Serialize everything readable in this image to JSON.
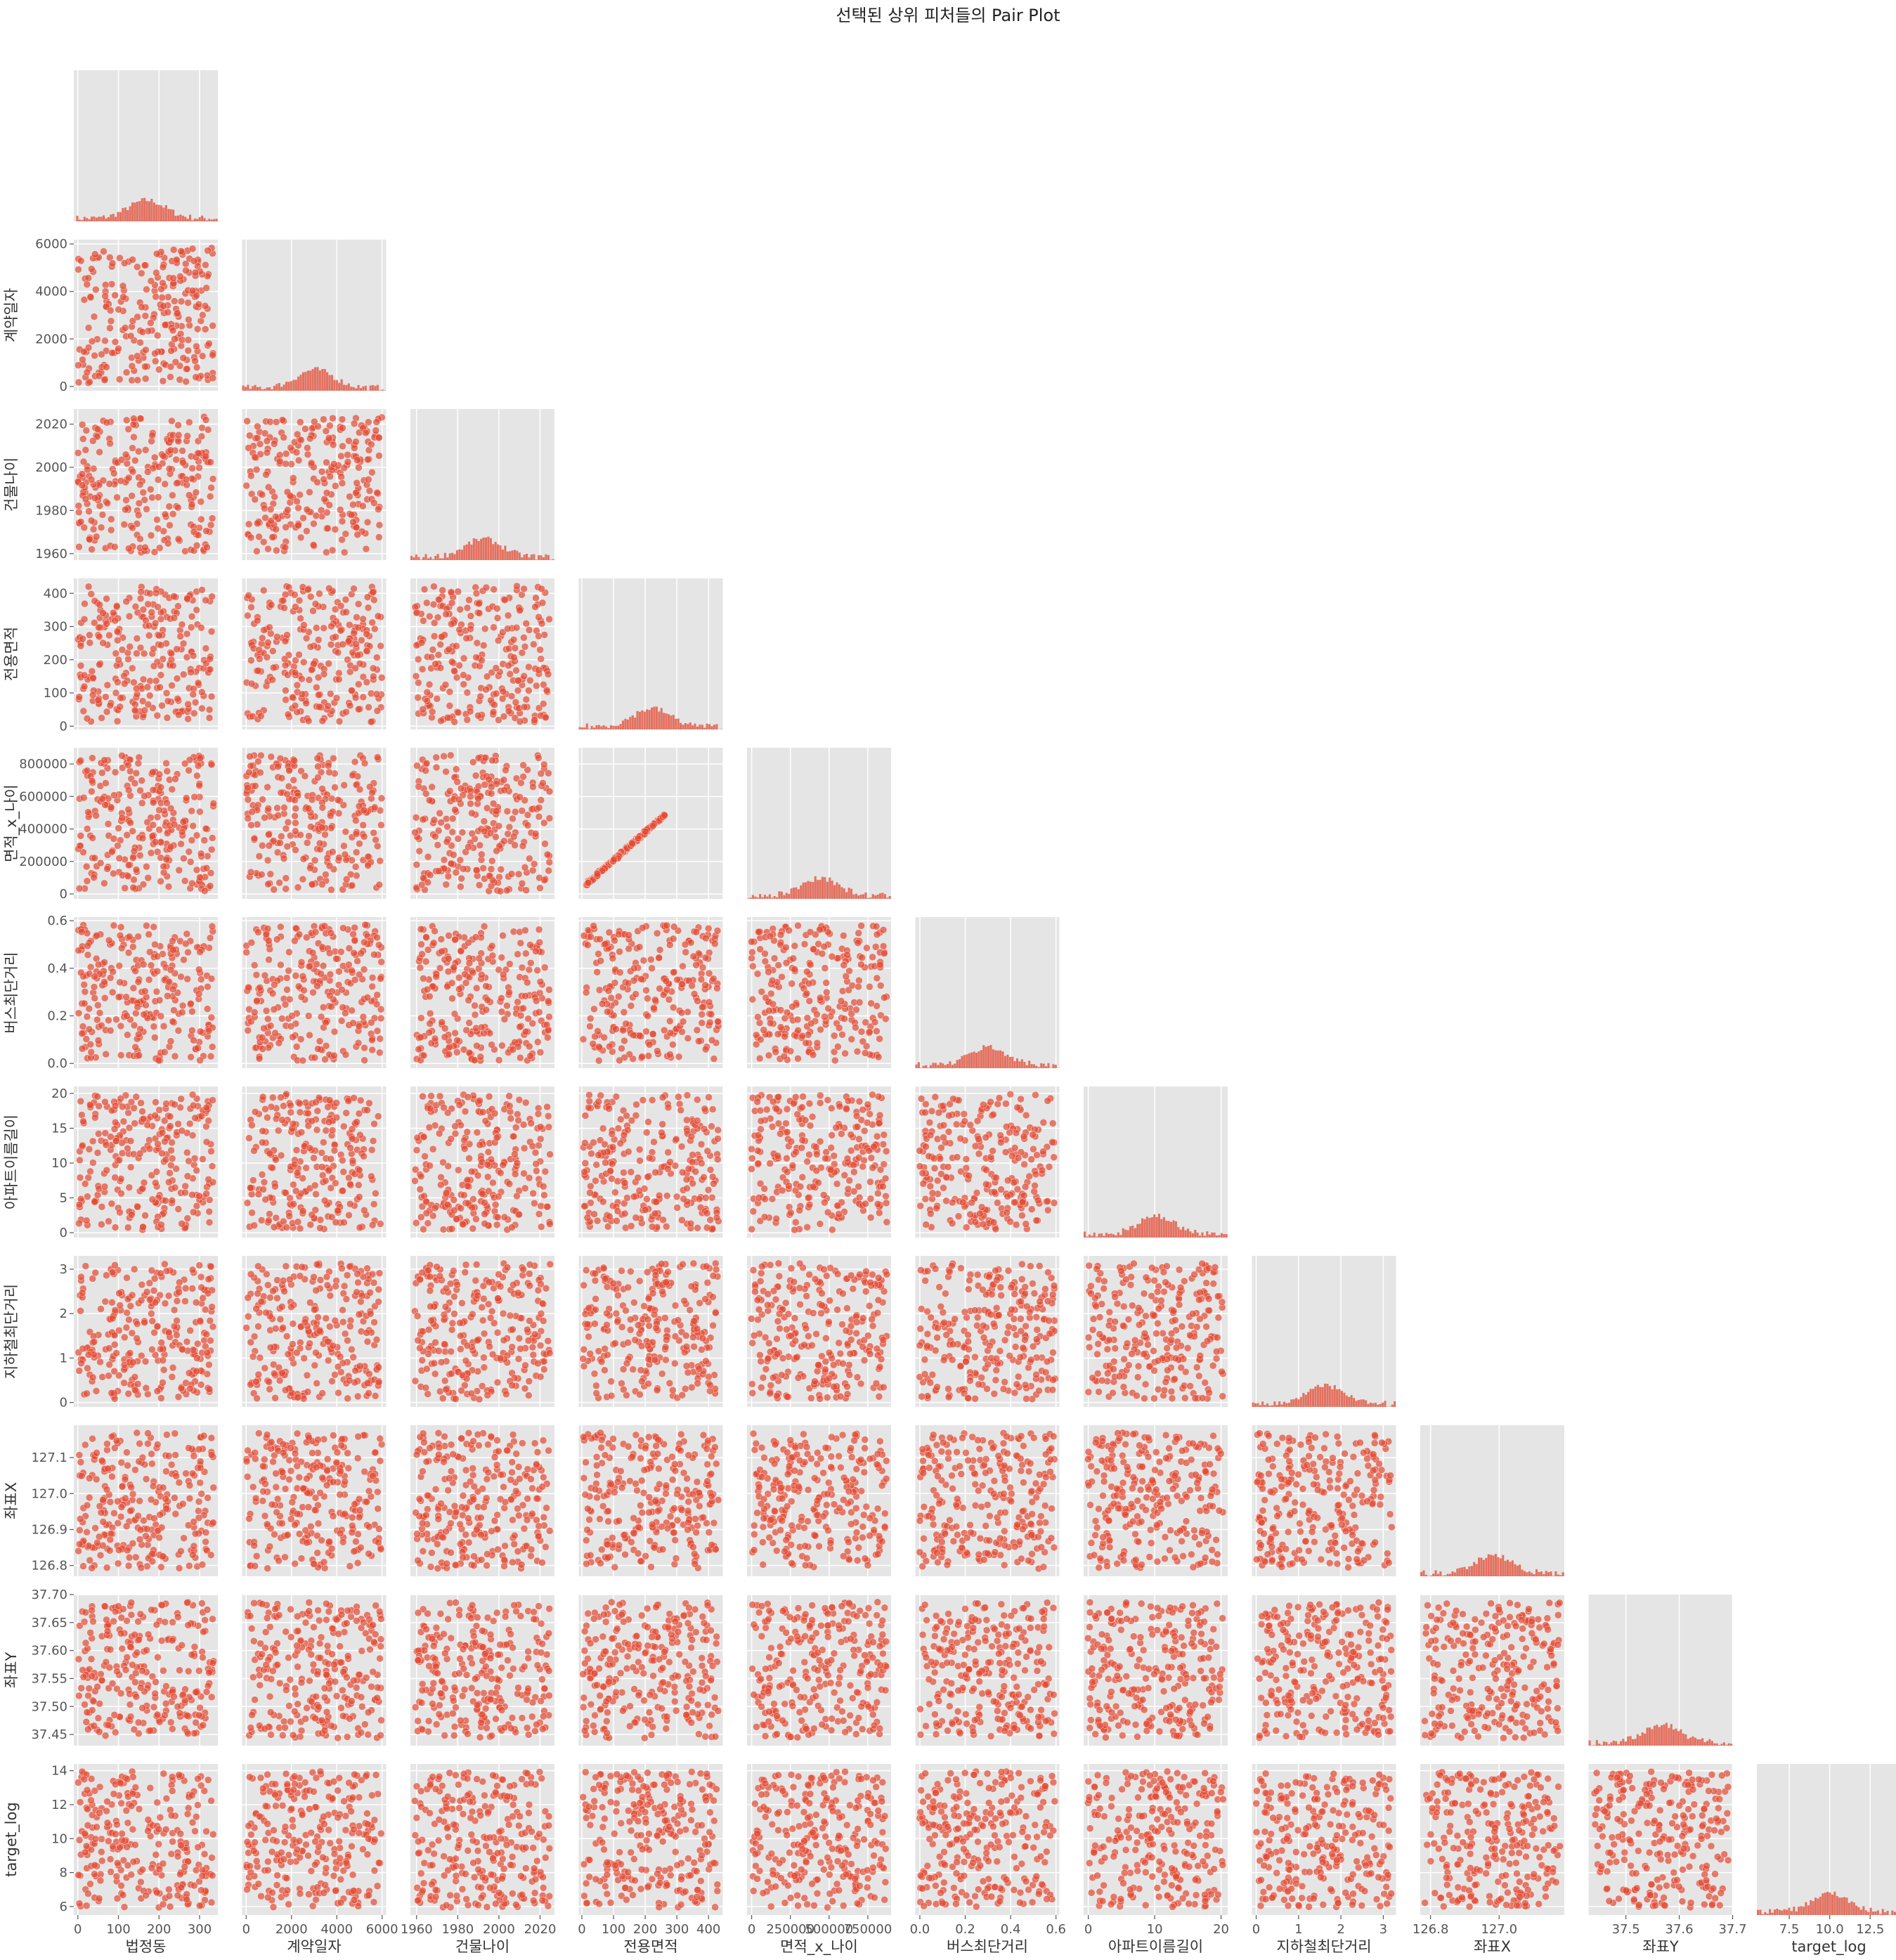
{
  "figure": {
    "title": "선택된 상위 피처들의 Pair Plot",
    "background": "#ffffff",
    "panel_background": "#e5e5e5",
    "grid_color": "#ffffff",
    "point_color": "#e24a33",
    "tick_color": "#555555"
  },
  "chart_data": {
    "type": "scatter",
    "kind": "pairplot-lower-triangle",
    "title": "선택된 상위 피처들의 Pair Plot",
    "grid": true,
    "variables": [
      {
        "name": "법정동",
        "range": [
          -10,
          345
        ],
        "ticks": [
          0,
          100,
          200,
          300
        ],
        "tick_labels": [
          "0",
          "100",
          "200",
          "300"
        ]
      },
      {
        "name": "계약일자",
        "range": [
          -180,
          6180
        ],
        "ticks": [
          0,
          2000,
          4000,
          6000
        ],
        "tick_labels": [
          "0",
          "2000",
          "4000",
          "6000"
        ]
      },
      {
        "name": "건물나이",
        "range": [
          1957,
          2027
        ],
        "ticks": [
          1960,
          1980,
          2000,
          2020
        ],
        "tick_labels": [
          "1960",
          "1980",
          "2000",
          "2020"
        ]
      },
      {
        "name": "전용면적",
        "range": [
          -10,
          445
        ],
        "ticks": [
          0,
          100,
          200,
          300,
          400
        ],
        "tick_labels": [
          "0",
          "100",
          "200",
          "300",
          "400"
        ]
      },
      {
        "name": "면적_x_나이",
        "range": [
          -30000,
          900000
        ],
        "ticks": [
          0,
          200000,
          400000,
          600000,
          800000
        ],
        "tick_labels": [
          "0",
          "200000",
          "400000",
          "600000",
          "800000"
        ],
        "x_ticks": [
          0,
          250000,
          500000,
          750000
        ],
        "x_tick_labels": [
          "0",
          "250000",
          "500000",
          "750000"
        ]
      },
      {
        "name": "버스최단거리",
        "range": [
          -0.02,
          0.615
        ],
        "ticks": [
          0,
          0.2,
          0.4,
          0.6
        ],
        "tick_labels": [
          "0.0",
          "0.2",
          "0.4",
          "0.6"
        ]
      },
      {
        "name": "아파트이름길이",
        "range": [
          -0.7,
          21
        ],
        "ticks": [
          0,
          5,
          10,
          15,
          20
        ],
        "tick_labels": [
          "0",
          "5",
          "10",
          "15",
          "20"
        ],
        "x_ticks": [
          0,
          10,
          20
        ],
        "x_tick_labels": [
          "0",
          "10",
          "20"
        ]
      },
      {
        "name": "지하철최단거리",
        "range": [
          -0.1,
          3.3
        ],
        "ticks": [
          0,
          1,
          2,
          3
        ],
        "tick_labels": [
          "0",
          "1",
          "2",
          "3"
        ]
      },
      {
        "name": "좌표X",
        "range": [
          126.77,
          127.19
        ],
        "ticks": [
          126.8,
          126.9,
          127.0,
          127.1
        ],
        "tick_labels": [
          "126.8",
          "126.9",
          "127.0",
          "127.1"
        ],
        "x_ticks": [
          126.8,
          127.0
        ],
        "x_tick_labels": [
          "126.8",
          "127.0"
        ]
      },
      {
        "name": "좌표Y",
        "range": [
          37.43,
          37.7
        ],
        "ticks": [
          37.45,
          37.5,
          37.55,
          37.6,
          37.65,
          37.7
        ],
        "tick_labels": [
          "37.45",
          "37.50",
          "37.55",
          "37.60",
          "37.65",
          "37.70"
        ],
        "x_ticks": [
          37.5,
          37.6,
          37.7
        ],
        "x_tick_labels": [
          "37.5",
          "37.6",
          "37.7"
        ]
      },
      {
        "name": "target_log",
        "range": [
          5.5,
          14.4
        ],
        "ticks": [
          6,
          8,
          10,
          12,
          14
        ],
        "tick_labels": [
          "6",
          "8",
          "10",
          "12",
          "14"
        ],
        "x_ticks": [
          7.5,
          10.0,
          12.5
        ],
        "x_tick_labels": [
          "7.5",
          "10.0",
          "12.5"
        ]
      }
    ],
    "diagonal": "histogram"
  }
}
